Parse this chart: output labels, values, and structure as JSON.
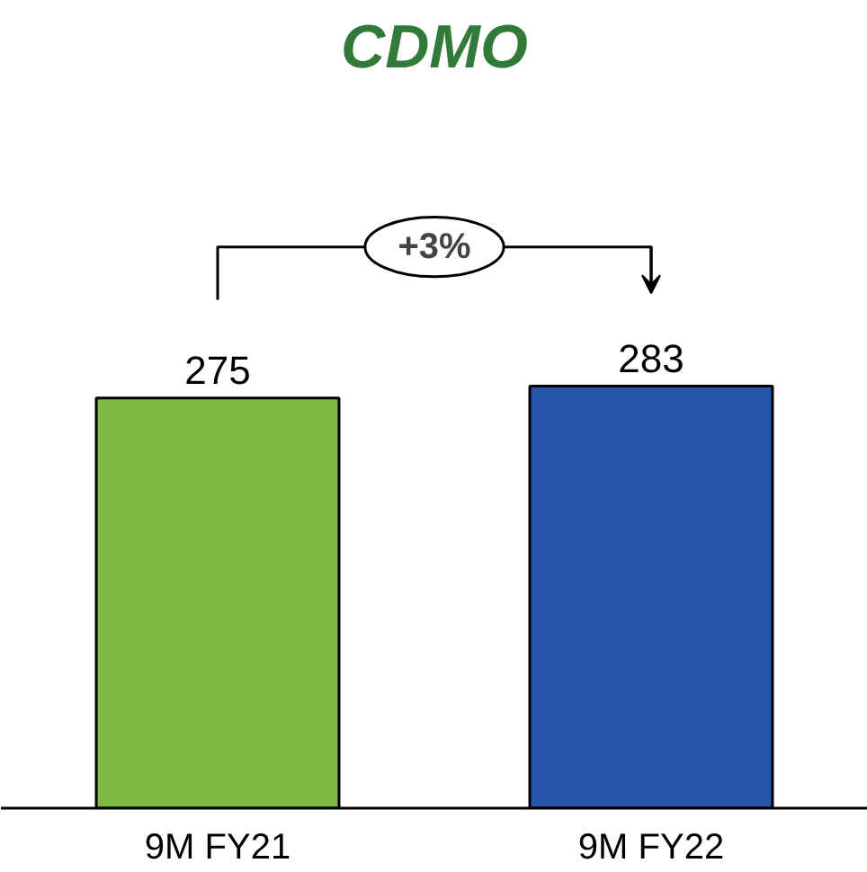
{
  "chart_data": {
    "type": "bar",
    "title": "CDMO",
    "categories": [
      "9M FY21",
      "9M FY22"
    ],
    "values": [
      275,
      283
    ],
    "colors": [
      "#7dbb42",
      "#2554a8"
    ],
    "data_labels": true,
    "annotations": [
      "+3%"
    ]
  }
}
